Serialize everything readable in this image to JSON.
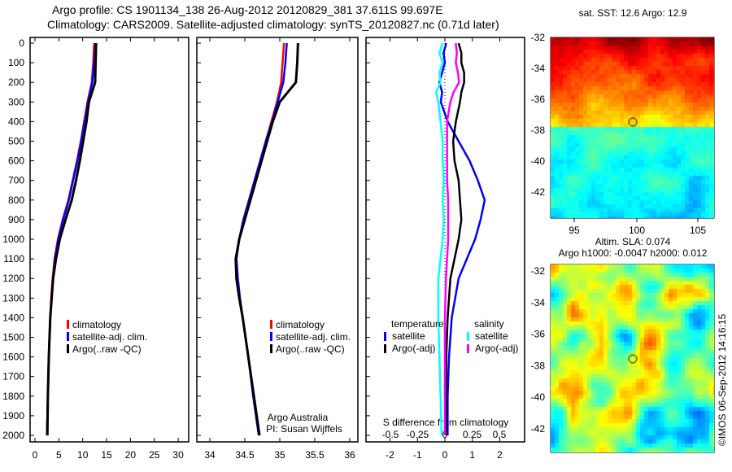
{
  "header": {
    "line1": "Argo profile: CS 1901134_138 26-Aug-2012 20120829_381 37.611S 99.697E",
    "line2": "Climatology: CARS2009. Satellite-adjusted climatology: synTS_20120827.nc (0.71d later)"
  },
  "colors": {
    "climatology": "#ff0000",
    "satellite": "#0000ff",
    "argo": "#000000",
    "sal_satellite": "#00ffff",
    "sal_argo": "#ff00ff"
  },
  "chart_data": [
    {
      "type": "line",
      "name": "temperature",
      "depth_ticks": [
        "0",
        "100",
        "200",
        "300",
        "400",
        "500",
        "600",
        "700",
        "800",
        "900",
        "1000",
        "1100",
        "1200",
        "1300",
        "1400",
        "1500",
        "1600",
        "1700",
        "1800",
        "1900",
        "2000"
      ],
      "xlim": [
        0,
        30
      ],
      "xticks": [
        "0",
        "5",
        "10",
        "15",
        "20",
        "25",
        "30"
      ],
      "legend": [
        "climatology",
        "satellite-adj. clim.",
        "Argo(..raw -QC)"
      ],
      "depth": [
        0,
        100,
        200,
        300,
        400,
        500,
        600,
        700,
        800,
        900,
        1000,
        1100,
        1200,
        1300,
        1400,
        1600,
        1800,
        2000
      ],
      "series": [
        {
          "name": "climatology",
          "values": [
            12.4,
            12.2,
            11.9,
            11.0,
            10.3,
            9.6,
            8.8,
            7.9,
            7.0,
            5.8,
            4.8,
            4.1,
            3.7,
            3.4,
            3.2,
            2.9,
            2.7,
            2.5
          ]
        },
        {
          "name": "satellite-adj. clim.",
          "values": [
            12.7,
            12.4,
            12.0,
            11.1,
            10.4,
            9.7,
            8.9,
            8.0,
            7.1,
            5.9,
            4.9,
            4.2,
            3.8,
            3.5,
            3.2,
            2.9,
            2.7,
            2.5
          ]
        },
        {
          "name": "Argo(..raw -QC)",
          "values": [
            12.8,
            12.7,
            12.6,
            11.3,
            10.8,
            10.1,
            9.4,
            8.6,
            7.7,
            6.4,
            5.2,
            4.4,
            3.8,
            3.5,
            3.2,
            2.9,
            2.7,
            2.6
          ]
        }
      ]
    },
    {
      "type": "line",
      "name": "salinity",
      "xlim": [
        33.9,
        36
      ],
      "xticks": [
        "34",
        "34.5",
        "35",
        "35.5",
        "36"
      ],
      "xtick_values": [
        34,
        34.5,
        35,
        35.5,
        36
      ],
      "legend": [
        "climatology",
        "satellite-adj. clim.",
        "Argo(..raw -QC)"
      ],
      "annotation": [
        "Argo Australia",
        "PI: Susan Wijffels"
      ],
      "depth": [
        0,
        100,
        200,
        300,
        400,
        500,
        600,
        700,
        800,
        900,
        1000,
        1100,
        1200,
        1300,
        1400,
        1600,
        1800,
        2000
      ],
      "series": [
        {
          "name": "climatology",
          "values": [
            35.06,
            35.04,
            35.02,
            34.96,
            34.88,
            34.8,
            34.72,
            34.64,
            34.56,
            34.48,
            34.42,
            34.38,
            34.4,
            34.43,
            34.47,
            34.55,
            34.62,
            34.7
          ]
        },
        {
          "name": "satellite-adj. clim.",
          "values": [
            35.1,
            35.08,
            35.05,
            34.97,
            34.89,
            34.8,
            34.72,
            34.64,
            34.56,
            34.48,
            34.42,
            34.38,
            34.4,
            34.43,
            34.47,
            34.55,
            34.62,
            34.7
          ]
        },
        {
          "name": "Argo(..raw -QC)",
          "values": [
            35.26,
            35.25,
            35.23,
            35.0,
            34.9,
            34.82,
            34.74,
            34.66,
            34.58,
            34.5,
            34.42,
            34.37,
            34.38,
            34.42,
            34.47,
            34.55,
            34.63,
            34.71
          ]
        }
      ]
    },
    {
      "type": "line",
      "name": "difference",
      "xlim": [
        -2.9,
        2.9
      ],
      "xticks": [
        "-2",
        "-1",
        "0",
        "1",
        "2"
      ],
      "xtick_values": [
        -2,
        -1,
        0,
        1,
        2
      ],
      "s_xticks": [
        "-0.5",
        "-0.25",
        "0",
        "0.25",
        "0.5"
      ],
      "s_xtick_values": [
        -0.5,
        -0.25,
        0,
        0.25,
        0.5
      ],
      "s_label": "S difference from climatology",
      "legend_t_title": "temperature",
      "legend_s_title": "salinity",
      "legend": [
        "satellite",
        "Argo(-adj)",
        "satellite",
        "Argo(-adj)"
      ],
      "depth": [
        0,
        50,
        100,
        150,
        200,
        250,
        300,
        400,
        500,
        600,
        700,
        800,
        900,
        1000,
        1100,
        1200,
        1400,
        1600,
        1800,
        2000
      ],
      "series": [
        {
          "name": "T satellite",
          "values": [
            0.05,
            -0.05,
            0.0,
            -0.1,
            -0.2,
            -0.1,
            -0.15,
            0.1,
            0.5,
            0.9,
            1.2,
            1.45,
            1.3,
            1.1,
            0.8,
            0.5,
            0.25,
            0.15,
            0.1,
            0.1
          ]
        },
        {
          "name": "T Argo(-adj)",
          "values": [
            0.5,
            0.6,
            0.6,
            0.7,
            0.7,
            0.6,
            0.55,
            0.4,
            0.3,
            0.35,
            0.5,
            0.55,
            0.6,
            0.5,
            0.35,
            0.2,
            0.1,
            0.05,
            0.05,
            0.05
          ]
        },
        {
          "name": "S satellite",
          "values": [
            -0.02,
            -0.05,
            -0.02,
            -0.05,
            -0.04,
            -0.08,
            -0.06,
            -0.04,
            -0.02,
            -0.02,
            -0.01,
            -0.02,
            -0.01,
            -0.02,
            -0.04,
            -0.06,
            -0.06,
            -0.05,
            -0.04,
            -0.03
          ]
        },
        {
          "name": "S Argo(-adj)",
          "values": [
            0.1,
            0.11,
            0.1,
            0.12,
            0.13,
            0.08,
            0.05,
            0.02,
            0.02,
            0.02,
            0.02,
            0.03,
            0.03,
            0.03,
            0.02,
            0.01,
            0.0,
            0.0,
            0.0,
            0.0
          ]
        }
      ]
    },
    {
      "type": "heatmap",
      "name": "sst-map",
      "title": "sat. SST: 12.6 Argo: 12.9",
      "yticks": [
        "-32",
        "-34",
        "-36",
        "-38",
        "-40",
        "-42"
      ],
      "xticks": [
        "95",
        "100",
        "105"
      ],
      "lon_range": [
        93.2,
        106.2
      ],
      "lat_range": [
        -32,
        -43.6
      ],
      "marker": [
        99.697,
        -37.611
      ]
    },
    {
      "type": "heatmap",
      "name": "sla-map",
      "title1": "Altim. SLA: 0.074",
      "title2": "Argo h1000: -0.0047 h2000: 0.012",
      "yticks": [
        "-32",
        "-34",
        "-36",
        "-38",
        "-40",
        "-42"
      ],
      "lon_range": [
        93.2,
        106.2
      ],
      "lat_range": [
        -31.6,
        -43.8
      ],
      "marker": [
        99.697,
        -37.611
      ]
    }
  ],
  "footer": {
    "credit": "©IMOS 06-Sep-2012 14:16:15"
  }
}
